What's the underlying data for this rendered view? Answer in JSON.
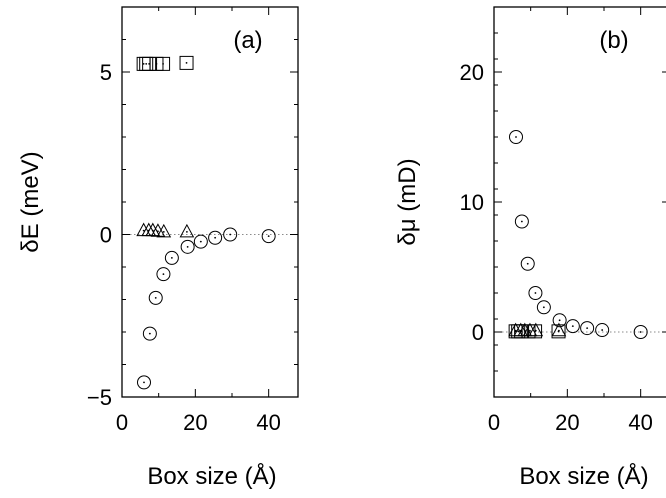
{
  "chart_data": [
    {
      "type": "scatter",
      "panel_label": "(a)",
      "xlabel": "Box size (Å)",
      "ylabel": "δE (meV)",
      "xlim": [
        0,
        48
      ],
      "ylim": [
        -5,
        7
      ],
      "xticks": [
        0,
        20,
        40
      ],
      "xtick_labels": [
        "0",
        "20",
        "40"
      ],
      "yticks": [
        -5,
        0,
        5
      ],
      "ytick_labels": [
        "−5",
        "0",
        "5"
      ],
      "zero_reference_line": true,
      "series": [
        {
          "marker": "square",
          "points": [
            [
              5.9,
              5.25
            ],
            [
              6.6,
              5.25
            ],
            [
              7.4,
              5.25
            ],
            [
              9.4,
              5.25
            ],
            [
              11.2,
              5.25
            ],
            [
              17.6,
              5.28
            ]
          ]
        },
        {
          "marker": "triangle",
          "points": [
            [
              5.9,
              0.12
            ],
            [
              7.3,
              0.12
            ],
            [
              8.4,
              0.12
            ],
            [
              9.8,
              0.1
            ],
            [
              11.4,
              0.08
            ],
            [
              17.7,
              0.08
            ]
          ]
        },
        {
          "marker": "circle",
          "points": [
            [
              6.0,
              -4.55
            ],
            [
              7.6,
              -3.05
            ],
            [
              9.2,
              -1.95
            ],
            [
              11.3,
              -1.22
            ],
            [
              13.6,
              -0.72
            ],
            [
              17.9,
              -0.38
            ],
            [
              21.5,
              -0.22
            ],
            [
              25.4,
              -0.1
            ],
            [
              29.5,
              0.0
            ],
            [
              40.0,
              -0.05
            ]
          ]
        }
      ]
    },
    {
      "type": "scatter",
      "panel_label": "(b)",
      "xlabel": "Box size (Å)",
      "ylabel": "δμ (mD)",
      "xlim": [
        0,
        48
      ],
      "ylim": [
        -5,
        25
      ],
      "xticks": [
        0,
        20,
        40
      ],
      "xtick_labels": [
        "0",
        "20",
        "40"
      ],
      "yticks": [
        0,
        10,
        20
      ],
      "ytick_labels": [
        "0",
        "10",
        "20"
      ],
      "zero_reference_line": true,
      "series": [
        {
          "marker": "square",
          "points": [
            [
              5.9,
              0.05
            ],
            [
              6.6,
              0.05
            ],
            [
              7.4,
              0.05
            ],
            [
              9.4,
              0.05
            ],
            [
              11.2,
              0.05
            ],
            [
              17.6,
              0.05
            ]
          ]
        },
        {
          "marker": "triangle",
          "points": [
            [
              5.9,
              0.1
            ],
            [
              7.3,
              0.1
            ],
            [
              8.4,
              0.1
            ],
            [
              9.8,
              0.1
            ],
            [
              11.4,
              0.1
            ],
            [
              17.7,
              0.1
            ]
          ]
        },
        {
          "marker": "circle",
          "points": [
            [
              6.0,
              15.0
            ],
            [
              7.6,
              8.5
            ],
            [
              9.2,
              5.25
            ],
            [
              11.3,
              3.0
            ],
            [
              13.6,
              1.9
            ],
            [
              17.9,
              0.9
            ],
            [
              21.5,
              0.45
            ],
            [
              25.4,
              0.3
            ],
            [
              29.5,
              0.15
            ],
            [
              40.0,
              0.0
            ]
          ]
        }
      ]
    }
  ]
}
